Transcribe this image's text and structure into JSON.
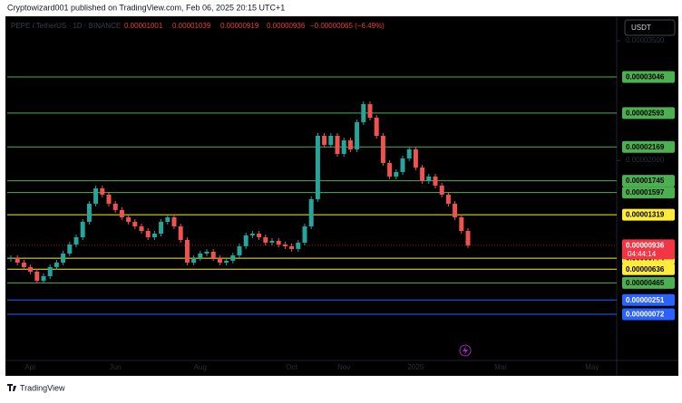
{
  "header": {
    "publisher": "Cryptowizard001 published on TradingView.com, Feb 06, 2025 20:15 UTC+1"
  },
  "footer": {
    "brand": "TradingView"
  },
  "chart_data": {
    "type": "candlestick",
    "symbol": "PEPE / TetherUS · 1D · BINANCE",
    "open": 1.001e-05,
    "high": 1.039e-05,
    "low": 9.19e-06,
    "close": 9.36e-06,
    "change": "−0.00000065 (−6.49%)",
    "currency": "USDT",
    "last_price": 9.36e-06,
    "countdown": "04:44:14",
    "ylim": [
      3.806e-05,
      -7e-06
    ],
    "yticks": [
      {
        "value": 3.5e-05,
        "label": "0.00003500"
      },
      {
        "value": 2e-05,
        "label": "0.00002000"
      }
    ],
    "levels": [
      {
        "price": 3.046e-05,
        "color": "#4caf50"
      },
      {
        "price": 2.593e-05,
        "color": "#4caf50"
      },
      {
        "price": 2.169e-05,
        "color": "#4caf50"
      },
      {
        "price": 1.745e-05,
        "color": "#4caf50"
      },
      {
        "price": 1.597e-05,
        "color": "#4caf50"
      },
      {
        "price": 1.319e-05,
        "color": "#ffeb3b"
      },
      {
        "price": 7.74e-06,
        "color": "#ffeb3b"
      },
      {
        "price": 6.36e-06,
        "color": "#ffeb3b"
      },
      {
        "price": 4.65e-06,
        "color": "#4caf50"
      },
      {
        "price": 2.51e-06,
        "color": "#2962ff"
      },
      {
        "price": {
          "value": 7.2e-07,
          "label": "0.00000072"
        },
        "color": "#2962ff"
      }
    ],
    "up_color": "#26a69a",
    "down_color": "#ef5350",
    "categories": [
      null,
      null,
      null,
      "Apr",
      null,
      null,
      null,
      null,
      null,
      null,
      null,
      null,
      null,
      null,
      null,
      null,
      "Jun",
      null,
      null,
      null,
      null,
      null,
      null,
      null,
      null,
      null,
      null,
      null,
      null,
      "Aug",
      null,
      null,
      null,
      null,
      null,
      null,
      null,
      null,
      null,
      null,
      null,
      null,
      null,
      "Oct",
      null,
      null,
      null,
      null,
      null,
      null,
      null,
      "Nov",
      null,
      null,
      null,
      null,
      null,
      null,
      null,
      null,
      null,
      null,
      "2025",
      null,
      null,
      null,
      null,
      null,
      null,
      null,
      null,
      null,
      null,
      null,
      null,
      "Mar",
      null,
      null,
      null,
      null,
      null,
      null,
      null,
      null,
      null,
      null,
      null,
      null,
      null,
      "May"
    ],
    "values": [
      7.76e-06,
      7.19e-06,
      6.63e-06,
      6.06e-06,
      4.92e-06,
      5.49e-06,
      6.63e-06,
      7.19e-06,
      8.33e-06,
      9.46e-06,
      1.037e-05,
      1.23e-05,
      1.457e-05,
      1.65e-05,
      1.571e-05,
      1.457e-05,
      1.378e-05,
      1.287e-05,
      1.23e-05,
      1.173e-05,
      1.116e-05,
      1.037e-05,
      1.082e-05,
      1.23e-05,
      1.287e-05,
      1.173e-05,
      1.003e-05,
      7.19e-06,
      7.76e-06,
      8.33e-06,
      8.55e-06,
      7.76e-06,
      7.19e-06,
      7.42e-06,
      8.1e-06,
      9.24e-06,
      1.06e-05,
      1.082e-05,
      1.037e-05,
      9.69e-06,
      9.92e-06,
      9.46e-06,
      9.24e-06,
      8.9e-06,
      9.69e-06,
      1.173e-05,
      1.514e-05,
      2.308e-05,
      2.195e-05,
      2.308e-05,
      2.081e-05,
      2.251e-05,
      2.138e-05,
      2.479e-05,
      2.705e-05,
      2.535e-05,
      2.308e-05,
      1.968e-05,
      1.798e-05,
      1.854e-05,
      2.025e-05,
      2.138e-05,
      1.911e-05,
      1.741e-05,
      1.798e-05,
      1.684e-05,
      1.571e-05,
      1.457e-05,
      1.287e-05,
      1.116e-05,
      9.36e-06,
      null,
      null,
      null,
      null,
      null,
      null,
      null,
      null,
      null,
      null,
      null,
      null,
      null,
      null,
      null,
      null,
      null,
      null,
      null
    ]
  }
}
